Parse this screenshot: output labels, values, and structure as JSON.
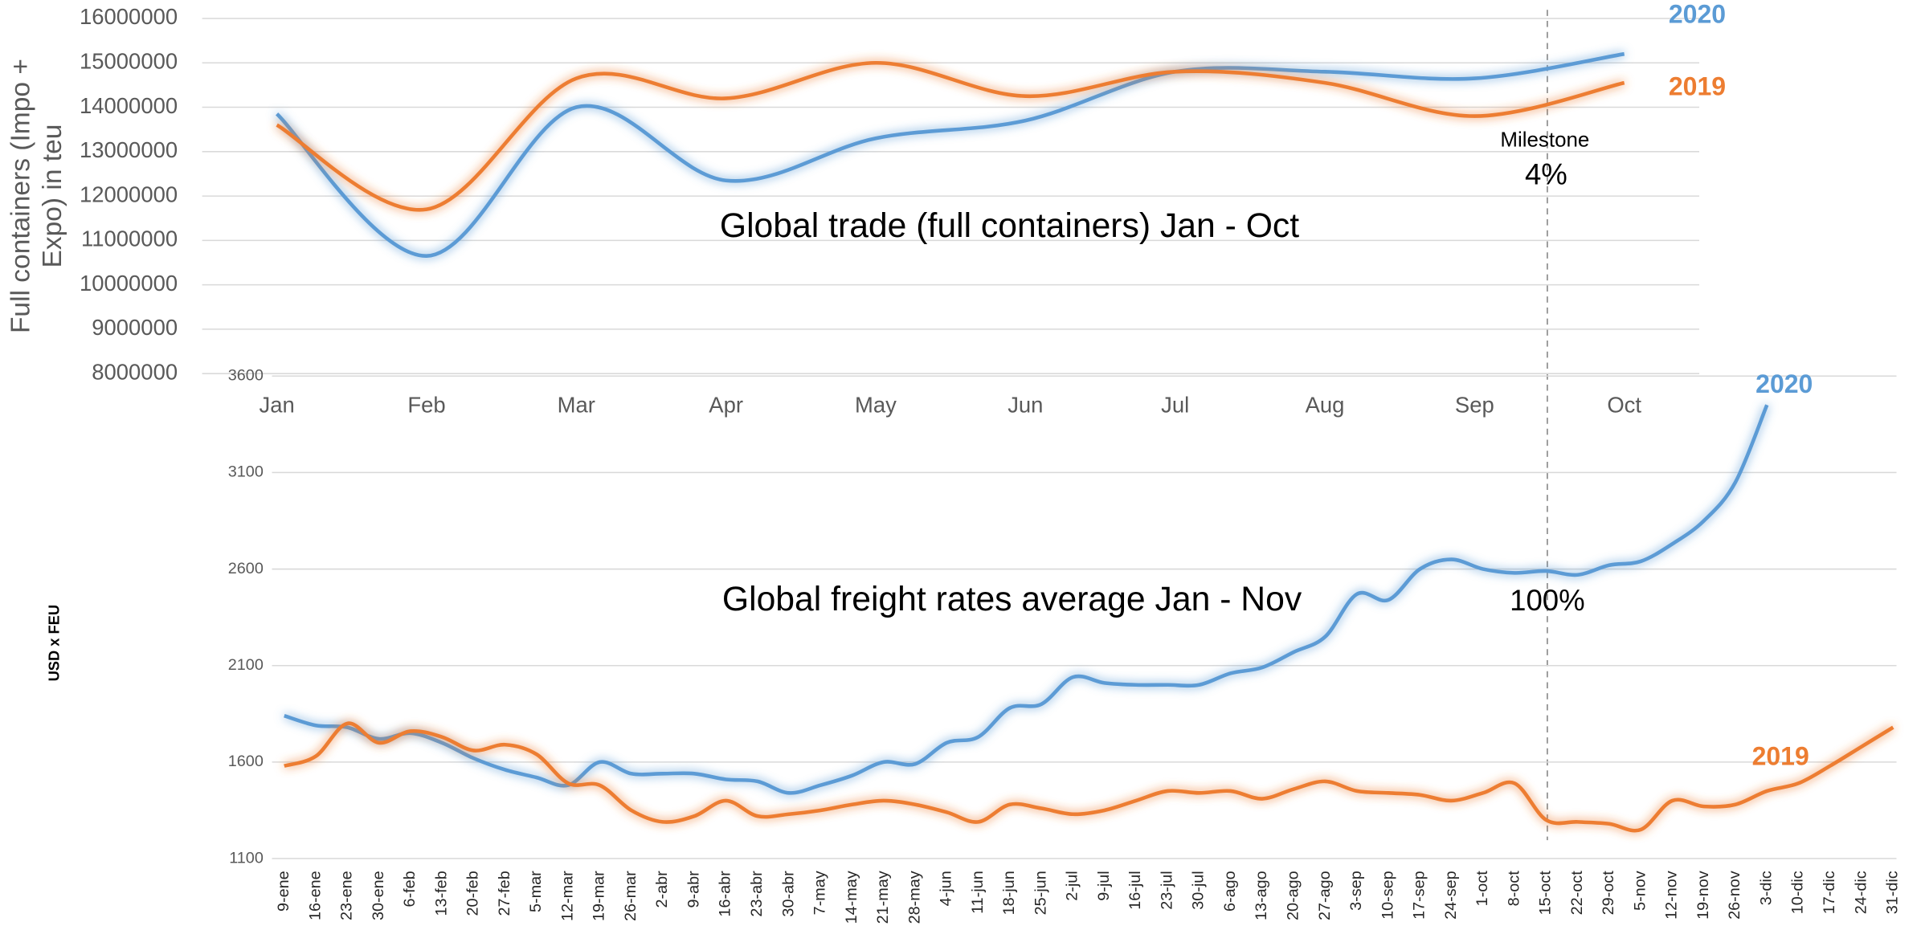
{
  "chart_data": [
    {
      "type": "line",
      "title": "Global trade (full containers) Jan - Oct",
      "y_label": "Full containers (Impo + Expo) in teu",
      "annotations": [
        "Milestone",
        "4%"
      ],
      "categories": [
        "Jan",
        "Feb",
        "Mar",
        "Apr",
        "May",
        "Jun",
        "Jul",
        "Aug",
        "Sep",
        "Oct"
      ],
      "series": [
        {
          "name": "2020",
          "color": "#5b9bd5",
          "values": [
            13850000,
            10650000,
            14000000,
            12350000,
            13300000,
            13700000,
            14800000,
            14800000,
            14650000,
            15200000
          ]
        },
        {
          "name": "2019",
          "color": "#ed7d31",
          "values": [
            13600000,
            11700000,
            14650000,
            14200000,
            15000000,
            14250000,
            14800000,
            14550000,
            13800000,
            14550000
          ]
        }
      ],
      "ylim": [
        8000000,
        16000000
      ],
      "yticks": [
        8000000,
        9000000,
        10000000,
        11000000,
        12000000,
        13000000,
        14000000,
        15000000,
        16000000
      ],
      "grid": true
    },
    {
      "type": "line",
      "title": "Global freight rates average Jan - Nov",
      "y_label": "USD x FEU",
      "annotations": [
        "100%"
      ],
      "categories": [
        "9-ene",
        "16-ene",
        "23-ene",
        "30-ene",
        "6-feb",
        "13-feb",
        "20-feb",
        "27-feb",
        "5-mar",
        "12-mar",
        "19-mar",
        "26-mar",
        "2-abr",
        "9-abr",
        "16-abr",
        "23-abr",
        "30-abr",
        "7-may",
        "14-may",
        "21-may",
        "28-may",
        "4-jun",
        "11-jun",
        "18-jun",
        "25-jun",
        "2-jul",
        "9-jul",
        "16-jul",
        "23-jul",
        "30-jul",
        "6-ago",
        "13-ago",
        "20-ago",
        "27-ago",
        "3-sep",
        "10-sep",
        "17-sep",
        "24-sep",
        "1-oct",
        "8-oct",
        "15-oct",
        "22-oct",
        "29-oct",
        "5-nov",
        "12-nov",
        "19-nov",
        "26-nov",
        "3-dic",
        "10-dic",
        "17-dic",
        "24-dic",
        "31-dic"
      ],
      "series": [
        {
          "name": "2020",
          "color": "#5b9bd5",
          "values": [
            1840,
            1790,
            1780,
            1720,
            1750,
            1700,
            1620,
            1560,
            1520,
            1480,
            1600,
            1540,
            1540,
            1540,
            1510,
            1500,
            1440,
            1480,
            1530,
            1600,
            1590,
            1700,
            1730,
            1880,
            1900,
            2040,
            2010,
            2000,
            2000,
            2000,
            2060,
            2090,
            2170,
            2250,
            2470,
            2440,
            2600,
            2650,
            2600,
            2580,
            2590,
            2570,
            2620,
            2640,
            2730,
            2850,
            3050,
            3450,
            null,
            null,
            null,
            null
          ]
        },
        {
          "name": "2019",
          "color": "#ed7d31",
          "values": [
            1580,
            1630,
            1800,
            1700,
            1760,
            1730,
            1660,
            1690,
            1640,
            1490,
            1480,
            1350,
            1290,
            1320,
            1400,
            1320,
            1330,
            1350,
            1380,
            1400,
            1380,
            1340,
            1290,
            1380,
            1360,
            1330,
            1350,
            1400,
            1450,
            1440,
            1450,
            1410,
            1460,
            1500,
            1450,
            1440,
            1430,
            1400,
            1440,
            1490,
            1300,
            1290,
            1280,
            1250,
            1400,
            1370,
            1380,
            1450,
            1490,
            1580,
            1680,
            1780
          ]
        }
      ],
      "ylim": [
        1100,
        3600
      ],
      "yticks": [
        1100,
        1600,
        2100,
        2600,
        3100,
        3600
      ],
      "grid": true
    }
  ]
}
